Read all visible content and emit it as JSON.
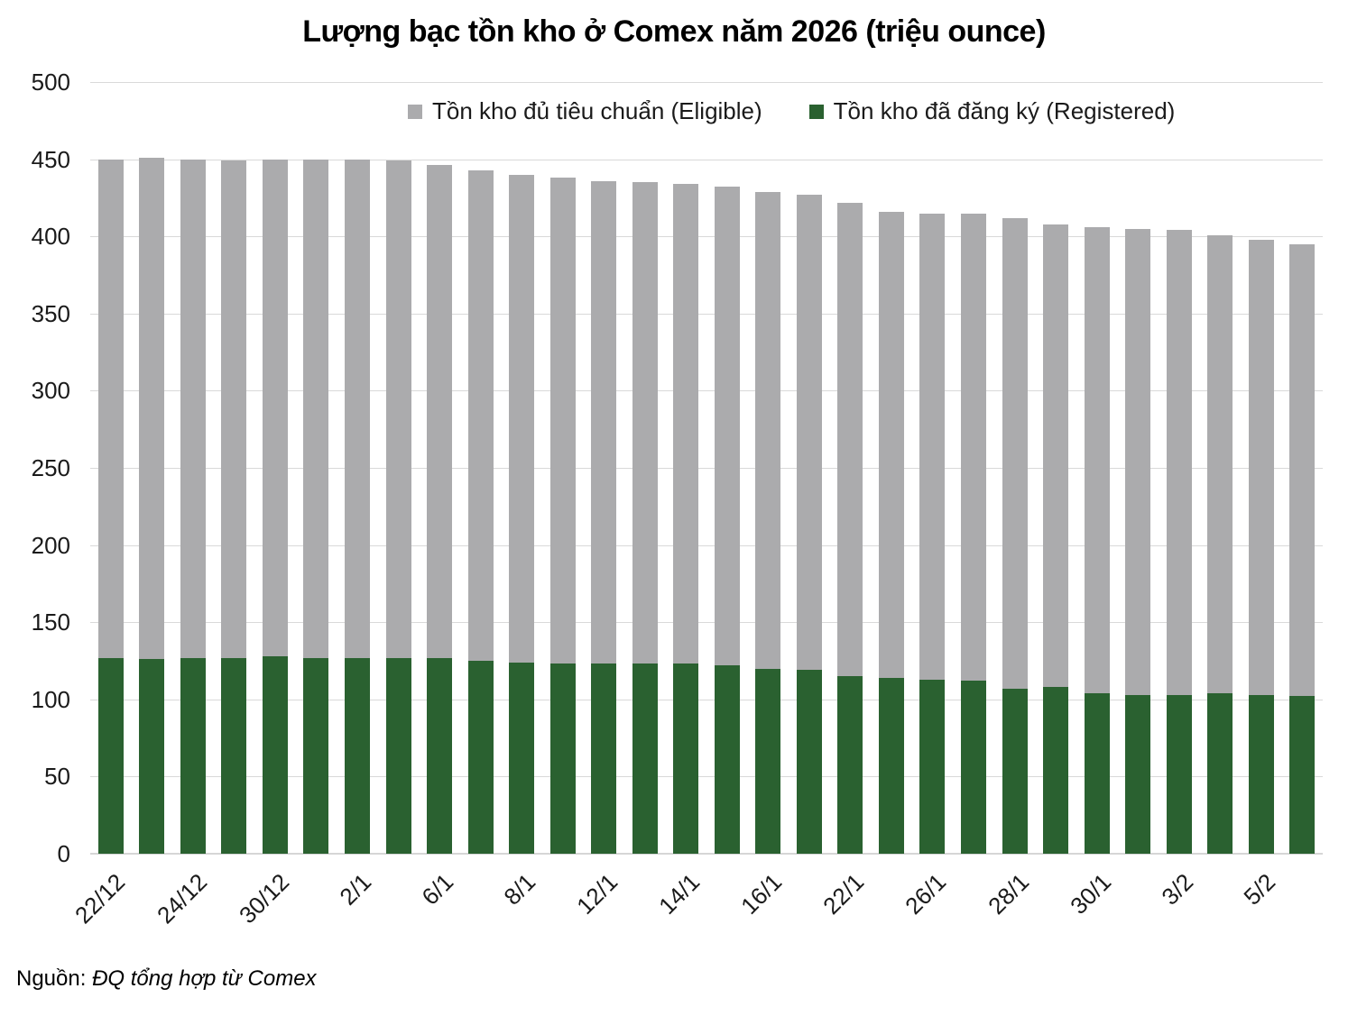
{
  "title": "Lượng bạc tồn kho ở Comex năm 2026 (triệu ounce)",
  "legend": [
    {
      "label": "Tồn kho đủ tiêu chuẩn (Eligible)",
      "color": "#ababad"
    },
    {
      "label": "Tồn kho đã đăng ký (Registered)",
      "color": "#2a6130"
    }
  ],
  "source": {
    "prefix": "Nguồn: ",
    "text": "ĐQ tổng hợp từ Comex"
  },
  "colors": {
    "eligible": "#ababad",
    "registered": "#2a6130",
    "gridline": "#d9d9d9",
    "axis_text": "#1a1a1a"
  },
  "chart_data": {
    "type": "bar",
    "stacked": true,
    "title": "Lượng bạc tồn kho ở Comex năm 2026 (triệu ounce)",
    "xlabel": "",
    "ylabel": "",
    "ylim": [
      0,
      500
    ],
    "y_ticks": [
      0,
      50,
      100,
      150,
      200,
      250,
      300,
      350,
      400,
      450,
      500
    ],
    "grid": true,
    "legend_position": "top",
    "categories": [
      "22/12",
      "",
      "24/12",
      "",
      "30/12",
      "",
      "2/1",
      "",
      "6/1",
      "",
      "8/1",
      "",
      "12/1",
      "",
      "14/1",
      "",
      "16/1",
      "",
      "22/1",
      "",
      "26/1",
      "",
      "28/1",
      "",
      "30/1",
      "",
      "3/2",
      "",
      "5/2",
      ""
    ],
    "series": [
      {
        "name": "Tồn kho đã đăng ký (Registered)",
        "color": "#2a6130",
        "values": [
          127,
          126,
          127,
          127,
          128,
          127,
          127,
          127,
          127,
          125,
          124,
          123,
          123,
          123,
          123,
          122,
          120,
          119,
          115,
          114,
          113,
          112,
          107,
          108,
          104,
          103,
          103,
          104,
          103,
          102
        ]
      },
      {
        "name": "Tồn kho đủ tiêu chuẩn (Eligible)",
        "color": "#ababad",
        "values": [
          323,
          325,
          323,
          322,
          322,
          323,
          323,
          322,
          319,
          318,
          316,
          315,
          313,
          312,
          311,
          310,
          309,
          308,
          307,
          302,
          302,
          303,
          305,
          300,
          302,
          302,
          301,
          297,
          295,
          293
        ]
      }
    ],
    "totals": [
      450,
      451,
      450,
      449,
      450,
      450,
      450,
      449,
      446,
      443,
      440,
      438,
      436,
      435,
      434,
      432,
      429,
      427,
      422,
      416,
      415,
      415,
      412,
      408,
      406,
      405,
      404,
      401,
      398,
      395
    ]
  }
}
